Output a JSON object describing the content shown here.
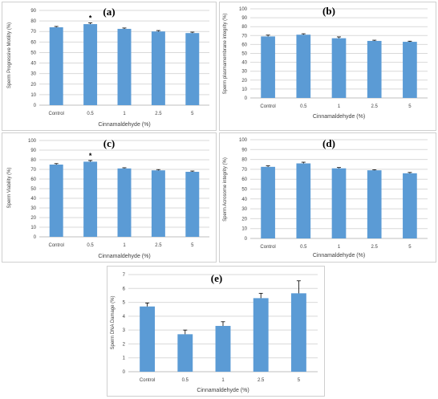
{
  "colors": {
    "bar": "#5b9bd5",
    "error_bar": "#000000",
    "grid": "#d9d9d9"
  },
  "chart_data": [
    {
      "type": "bar",
      "panel_label": "(a)",
      "categories": [
        "Control",
        "0.5",
        "1",
        "2.5",
        "5"
      ],
      "values": [
        74,
        77,
        72.5,
        70,
        68.5
      ],
      "errors": [
        0.8,
        1.2,
        0.8,
        0.9,
        0.9
      ],
      "annotations": [
        "",
        "*",
        "",
        "",
        ""
      ],
      "xlabel": "Cinnamaldehyde (%)",
      "ylabel": "Sperm Progressive Motility (%)",
      "ylim": [
        0,
        90
      ],
      "yticks": [
        "0",
        "10",
        "20",
        "30",
        "40",
        "50",
        "60",
        "70",
        "80",
        "90"
      ],
      "grid": true
    },
    {
      "type": "bar",
      "panel_label": "(b)",
      "categories": [
        "Control",
        "0.5",
        "1",
        "2.5",
        "5"
      ],
      "values": [
        69,
        71,
        67,
        64,
        63
      ],
      "errors": [
        1.5,
        1.0,
        1.5,
        0.8,
        0.7
      ],
      "annotations": [
        "",
        "",
        "",
        "",
        ""
      ],
      "xlabel": "Cinnamaldehyde (%)",
      "ylabel": "Sperm plasmamembrane integrity (%)",
      "ylim": [
        0,
        100
      ],
      "yticks": [
        "0",
        "10",
        "20",
        "30",
        "40",
        "50",
        "60",
        "70",
        "80",
        "90",
        "100"
      ],
      "grid": true
    },
    {
      "type": "bar",
      "panel_label": "(c)",
      "categories": [
        "Control",
        "0.5",
        "1",
        "2.5",
        "5"
      ],
      "values": [
        75,
        78,
        71,
        69,
        67.5
      ],
      "errors": [
        1.0,
        1.2,
        0.7,
        0.8,
        0.8
      ],
      "annotations": [
        "",
        "*",
        "",
        "",
        ""
      ],
      "xlabel": "Cinnamaldehyde (%)",
      "ylabel": "Sperm Viability (%)",
      "ylim": [
        0,
        100
      ],
      "yticks": [
        "0",
        "10",
        "20",
        "30",
        "40",
        "50",
        "60",
        "70",
        "80",
        "90",
        "100"
      ],
      "grid": true
    },
    {
      "type": "bar",
      "panel_label": "(d)",
      "categories": [
        "Control",
        "0.5",
        "1",
        "2.5",
        "5"
      ],
      "values": [
        72.5,
        76,
        71,
        69,
        66
      ],
      "errors": [
        1.0,
        1.2,
        0.8,
        0.6,
        0.8
      ],
      "annotations": [
        "",
        "",
        "",
        "",
        ""
      ],
      "xlabel": "Cinnamaldehyde (%)",
      "ylabel": "Sperm Acrosome integrity (%)",
      "ylim": [
        0,
        100
      ],
      "yticks": [
        "0",
        "10",
        "20",
        "30",
        "40",
        "50",
        "60",
        "70",
        "80",
        "90",
        "100"
      ],
      "grid": true
    },
    {
      "type": "bar",
      "panel_label": "(e)",
      "categories": [
        "Control",
        "0.5",
        "1",
        "2.5",
        "5"
      ],
      "values": [
        4.7,
        2.7,
        3.3,
        5.3,
        5.65
      ],
      "errors": [
        0.25,
        0.3,
        0.3,
        0.35,
        0.9
      ],
      "annotations": [
        "",
        "",
        "",
        "",
        ""
      ],
      "xlabel": "Cinnamaldehyde (%)",
      "ylabel": "Sperm DNA Damage (%)",
      "ylim": [
        0,
        7
      ],
      "yticks": [
        "0",
        "1",
        "2",
        "3",
        "4",
        "5",
        "6",
        "7"
      ],
      "grid": true
    }
  ]
}
